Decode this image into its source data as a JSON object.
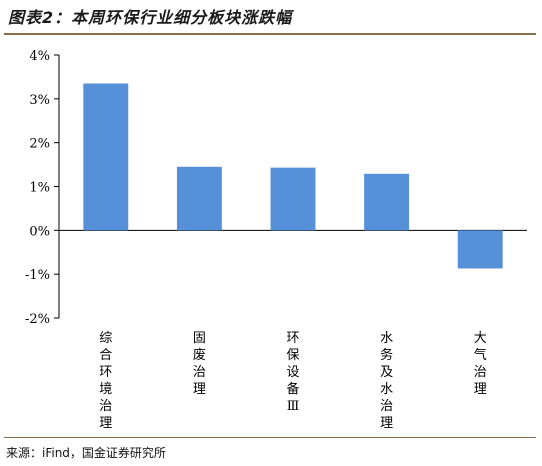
{
  "title": "图表2：本周环保行业细分板块涨跌幅",
  "source": "来源：iFind，国金证券研究所",
  "colors": {
    "bar": "#5590d9",
    "axis": "#000000",
    "rule": "#8a6d4a"
  },
  "chart_data": {
    "type": "bar",
    "title": "",
    "xlabel": "",
    "ylabel": "",
    "categories": [
      "综合环境治理",
      "固废治理",
      "环保设备Ⅲ",
      "水务及水治理",
      "大气治理"
    ],
    "values": [
      3.35,
      1.45,
      1.43,
      1.29,
      -0.87
    ],
    "unit": "%",
    "ylim": [
      -2,
      4
    ],
    "yticks": [
      "4%",
      "3%",
      "2%",
      "1%",
      "0%",
      "-1%",
      "-2%"
    ],
    "grid": false,
    "legend": "none"
  }
}
